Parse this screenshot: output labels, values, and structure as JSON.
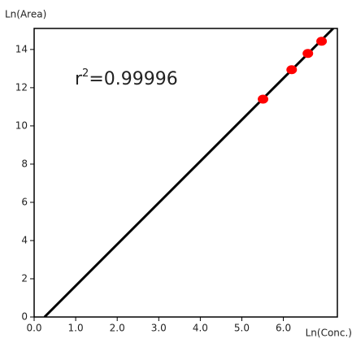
{
  "chart_data": {
    "type": "scatter",
    "x_label": "Ln(Conc.)",
    "y_label": "Ln(Area)",
    "annotation": [
      "r",
      "2",
      "=0.99996"
    ],
    "xlim": [
      0,
      7.3
    ],
    "ylim": [
      0,
      15.1
    ],
    "xticks": [
      {
        "value": 0,
        "label": "0.0"
      },
      {
        "value": 1,
        "label": "1.0"
      },
      {
        "value": 2,
        "label": "2.0"
      },
      {
        "value": 3,
        "label": "3.0"
      },
      {
        "value": 4,
        "label": "4.0"
      },
      {
        "value": 5,
        "label": "5.0"
      },
      {
        "value": 6,
        "label": "6.0"
      }
    ],
    "yticks": [
      0,
      2,
      4,
      6,
      8,
      10,
      12,
      14
    ],
    "series": [
      {
        "kind": "line",
        "color": "#000000",
        "x": [
          0.25,
          7.2
        ],
        "values": [
          0,
          15.1
        ]
      },
      {
        "kind": "points",
        "color": "#ff0000",
        "x": [
          5.51,
          6.2,
          6.59,
          6.92
        ],
        "values": [
          11.4,
          12.94,
          13.79,
          14.43
        ]
      }
    ]
  }
}
